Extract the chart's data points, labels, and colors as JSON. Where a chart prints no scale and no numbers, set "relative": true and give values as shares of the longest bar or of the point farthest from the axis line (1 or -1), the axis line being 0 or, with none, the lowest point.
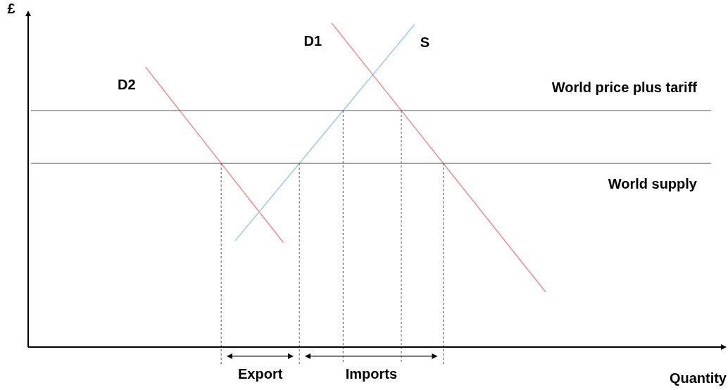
{
  "chart_data": {
    "type": "line",
    "relative": true,
    "xlabel": "Quantity",
    "ylabel": "£",
    "legend": false,
    "marker": "none",
    "categories": [
      null,
      null,
      null,
      null,
      null,
      null,
      null,
      null,
      null,
      null,
      null,
      null,
      null,
      null,
      null,
      null,
      null,
      null,
      null,
      null,
      null,
      null,
      null,
      null,
      null,
      null,
      null,
      null,
      null,
      null,
      null,
      null,
      null,
      null,
      null,
      null,
      null,
      null,
      null,
      null,
      null,
      null,
      null,
      null,
      null,
      null,
      null,
      null,
      null,
      null,
      null,
      null,
      null,
      null,
      null,
      null,
      null,
      null,
      null,
      null,
      null,
      null,
      null,
      null,
      null,
      null,
      null,
      null,
      null,
      null,
      null,
      null,
      null,
      null,
      null,
      null,
      null,
      null,
      null,
      null,
      null,
      null,
      null,
      null,
      null,
      null,
      null,
      null,
      null,
      null,
      null,
      null,
      null,
      null,
      null,
      null,
      null,
      null,
      null,
      null,
      null
    ],
    "series": [
      {
        "name": "D2",
        "color": "#f28b8b",
        "values": [
          null,
          null,
          null,
          null,
          null,
          null,
          null,
          null,
          null,
          null,
          null,
          null,
          null,
          null,
          null,
          null,
          null,
          0.865,
          null,
          null,
          null,
          null,
          null,
          null,
          null,
          null,
          null,
          null,
          null,
          null,
          null,
          null,
          null,
          null,
          null,
          null,
          null,
          0.322,
          null,
          null,
          null,
          null,
          null,
          null,
          null,
          null,
          null,
          null,
          null,
          null,
          null,
          null,
          null,
          null,
          null,
          null,
          null,
          null,
          null,
          null,
          null,
          null,
          null,
          null,
          null,
          null,
          null,
          null,
          null,
          null,
          null,
          null,
          null,
          null,
          null,
          null,
          null,
          null,
          null,
          null,
          null,
          null,
          null,
          null,
          null,
          null,
          null,
          null,
          null,
          null,
          null,
          null,
          null,
          null,
          null,
          null,
          null,
          null,
          null,
          null,
          null
        ]
      },
      {
        "name": "D1",
        "color": "#f28b8b",
        "values": [
          null,
          null,
          null,
          null,
          null,
          null,
          null,
          null,
          null,
          null,
          null,
          null,
          null,
          null,
          null,
          null,
          null,
          null,
          null,
          null,
          null,
          null,
          null,
          null,
          null,
          null,
          null,
          null,
          null,
          null,
          null,
          null,
          null,
          null,
          null,
          null,
          null,
          null,
          null,
          null,
          null,
          null,
          null,
          null,
          1,
          null,
          null,
          null,
          null,
          null,
          null,
          null,
          null,
          null,
          null,
          null,
          null,
          null,
          null,
          null,
          null,
          null,
          null,
          null,
          null,
          null,
          null,
          null,
          null,
          null,
          null,
          null,
          null,
          null,
          null,
          0.17,
          null,
          null,
          null,
          null,
          null,
          null,
          null,
          null,
          null,
          null,
          null,
          null,
          null,
          null,
          null,
          null,
          null,
          null,
          null,
          null,
          null,
          null,
          null,
          null,
          null
        ]
      },
      {
        "name": "S",
        "color": "#9fc9ea",
        "values": [
          null,
          null,
          null,
          null,
          null,
          null,
          null,
          null,
          null,
          null,
          null,
          null,
          null,
          null,
          null,
          null,
          null,
          null,
          null,
          null,
          null,
          null,
          null,
          null,
          null,
          null,
          null,
          null,
          null,
          null,
          0.328,
          null,
          null,
          null,
          null,
          null,
          null,
          null,
          null,
          null,
          null,
          null,
          null,
          null,
          null,
          null,
          null,
          null,
          null,
          null,
          null,
          null,
          null,
          null,
          null,
          null,
          0.996,
          null,
          null,
          null,
          null,
          null,
          null,
          null,
          null,
          null,
          null,
          null,
          null,
          null,
          null,
          null,
          null,
          null,
          null,
          null,
          null,
          null,
          null,
          null,
          null,
          null,
          null,
          null,
          null,
          null,
          null,
          null,
          null,
          null,
          null,
          null,
          null,
          null,
          null,
          null,
          null,
          null,
          null,
          null,
          null
        ]
      }
    ],
    "ref_lines": [
      {
        "axis": "y",
        "value": 0.73,
        "label": "World price plus tariff",
        "color": "#555555"
      },
      {
        "axis": "y",
        "value": 0.567,
        "label": "World supply",
        "color": "#555555"
      }
    ],
    "annotations": [
      "Export",
      "Imports"
    ]
  }
}
